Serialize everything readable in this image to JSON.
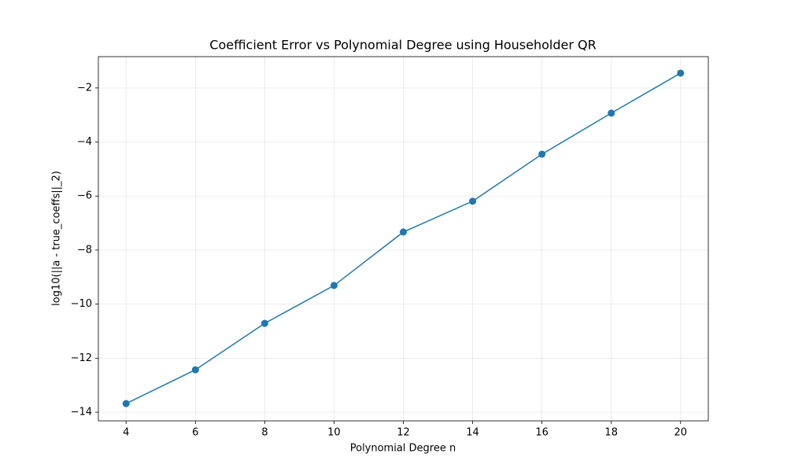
{
  "chart_data": {
    "type": "line",
    "title": "Coefficient Error vs Polynomial Degree using Householder QR",
    "x_label": "Polynomial Degree n",
    "y_label": "log10(||a - true_coeffs||_2)",
    "x": [
      4,
      6,
      8,
      10,
      12,
      14,
      16,
      18,
      20
    ],
    "series": [
      {
        "name": "error",
        "color": "#1f77b4",
        "values": [
          -13.68,
          -12.43,
          -10.71,
          -9.31,
          -7.33,
          -6.19,
          -4.45,
          -2.93,
          -1.45
        ]
      }
    ],
    "xlim": [
      3.2,
      20.8
    ],
    "ylim": [
      -14.32,
      -0.84
    ],
    "xticks": [
      4,
      6,
      8,
      10,
      12,
      14,
      16,
      18,
      20
    ],
    "yticks": [
      {
        "value": -14,
        "label": "−14"
      },
      {
        "value": -12,
        "label": "−12"
      },
      {
        "value": -10,
        "label": "−10"
      },
      {
        "value": -8,
        "label": "−8"
      },
      {
        "value": -6,
        "label": "−6"
      },
      {
        "value": -4,
        "label": "−4"
      },
      {
        "value": -2,
        "label": "−2"
      }
    ],
    "grid": true
  }
}
